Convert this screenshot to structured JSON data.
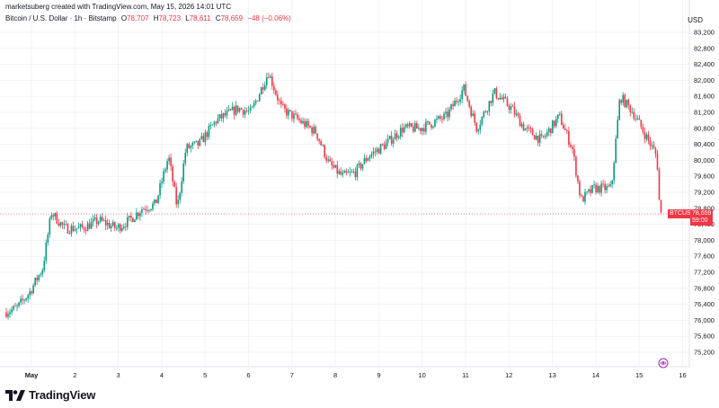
{
  "header": {
    "credit": "marketsuberg created with TradingView.com, May 15, 2026 14:01 UTC",
    "symbol": "Bitcoin / U.S. Dollar · 1h · Bitstamp",
    "ohlc": {
      "open_label": "O",
      "open": "78,707",
      "high_label": "H",
      "high": "78,723",
      "low_label": "L",
      "low": "78,611",
      "close_label": "C",
      "close": "78,659",
      "change": "−48 (−0.06%)"
    },
    "currency": "USD"
  },
  "price_tag": {
    "symbol": "BTCUSD",
    "price": "78,659",
    "countdown": "59:00"
  },
  "brand": {
    "name": "TradingView"
  },
  "colors": {
    "up": "#089981",
    "down": "#f23645",
    "grid": "#f0f3fa",
    "text": "#131722"
  },
  "icons": {
    "logo": "tradingview-logo-icon",
    "eye": "visibility-icon"
  },
  "chart_data": {
    "type": "candlestick",
    "title": "Bitcoin / U.S. Dollar · 1h · Bitstamp",
    "ylim": [
      75200,
      83400
    ],
    "y_ticks": [
      75200,
      75600,
      76000,
      76400,
      76800,
      77200,
      77600,
      78000,
      78400,
      78800,
      79200,
      79600,
      80000,
      80400,
      80800,
      81200,
      81600,
      82000,
      82400,
      82800,
      83200
    ],
    "y_tick_labels": [
      "75,200",
      "75,600",
      "76,000",
      "76,400",
      "76,800",
      "77,200",
      "77,600",
      "78,000",
      "78,400",
      "78,800",
      "79,200",
      "79,600",
      "80,000",
      "80,400",
      "80,800",
      "81,200",
      "81,600",
      "82,000",
      "82,400",
      "82,800",
      "83,200"
    ],
    "x_ticks": [
      {
        "day": 1,
        "label": "May"
      },
      {
        "day": 2,
        "label": "2"
      },
      {
        "day": 3,
        "label": "3"
      },
      {
        "day": 4,
        "label": "4"
      },
      {
        "day": 5,
        "label": "5"
      },
      {
        "day": 6,
        "label": "6"
      },
      {
        "day": 7,
        "label": "7"
      },
      {
        "day": 8,
        "label": "8"
      },
      {
        "day": 9,
        "label": "9"
      },
      {
        "day": 10,
        "label": "10"
      },
      {
        "day": 11,
        "label": "11"
      },
      {
        "day": 12,
        "label": "12"
      },
      {
        "day": 13,
        "label": "13"
      },
      {
        "day": 14,
        "label": "14"
      },
      {
        "day": 15,
        "label": "15"
      },
      {
        "day": 16,
        "label": "16"
      }
    ],
    "x_start_day": 0.42,
    "x_end_day": 16.3,
    "last_price": 78659,
    "price_path": [
      [
        0.42,
        76200
      ],
      [
        0.7,
        76300
      ],
      [
        1.0,
        76700
      ],
      [
        1.3,
        77300
      ],
      [
        1.5,
        78700
      ],
      [
        1.8,
        78300
      ],
      [
        2.2,
        78300
      ],
      [
        2.6,
        78500
      ],
      [
        3.0,
        78300
      ],
      [
        3.3,
        78500
      ],
      [
        3.6,
        78800
      ],
      [
        3.9,
        78900
      ],
      [
        4.2,
        80100
      ],
      [
        4.4,
        78800
      ],
      [
        4.6,
        80300
      ],
      [
        4.9,
        80400
      ],
      [
        5.3,
        81000
      ],
      [
        5.8,
        81300
      ],
      [
        6.1,
        81200
      ],
      [
        6.5,
        82200
      ],
      [
        6.8,
        81300
      ],
      [
        7.2,
        81000
      ],
      [
        7.6,
        80700
      ],
      [
        7.9,
        79900
      ],
      [
        8.2,
        79600
      ],
      [
        8.5,
        79700
      ],
      [
        8.8,
        80100
      ],
      [
        9.2,
        80400
      ],
      [
        9.6,
        80800
      ],
      [
        10.0,
        80800
      ],
      [
        10.6,
        81100
      ],
      [
        11.0,
        81800
      ],
      [
        11.3,
        80800
      ],
      [
        11.7,
        81700
      ],
      [
        12.1,
        81300
      ],
      [
        12.4,
        80800
      ],
      [
        12.8,
        80500
      ],
      [
        13.2,
        81100
      ],
      [
        13.5,
        80300
      ],
      [
        13.7,
        79000
      ],
      [
        14.0,
        79300
      ],
      [
        14.4,
        79300
      ],
      [
        14.6,
        81600
      ],
      [
        14.9,
        81200
      ],
      [
        15.2,
        80600
      ],
      [
        15.45,
        80100
      ],
      [
        15.52,
        78659
      ]
    ]
  }
}
